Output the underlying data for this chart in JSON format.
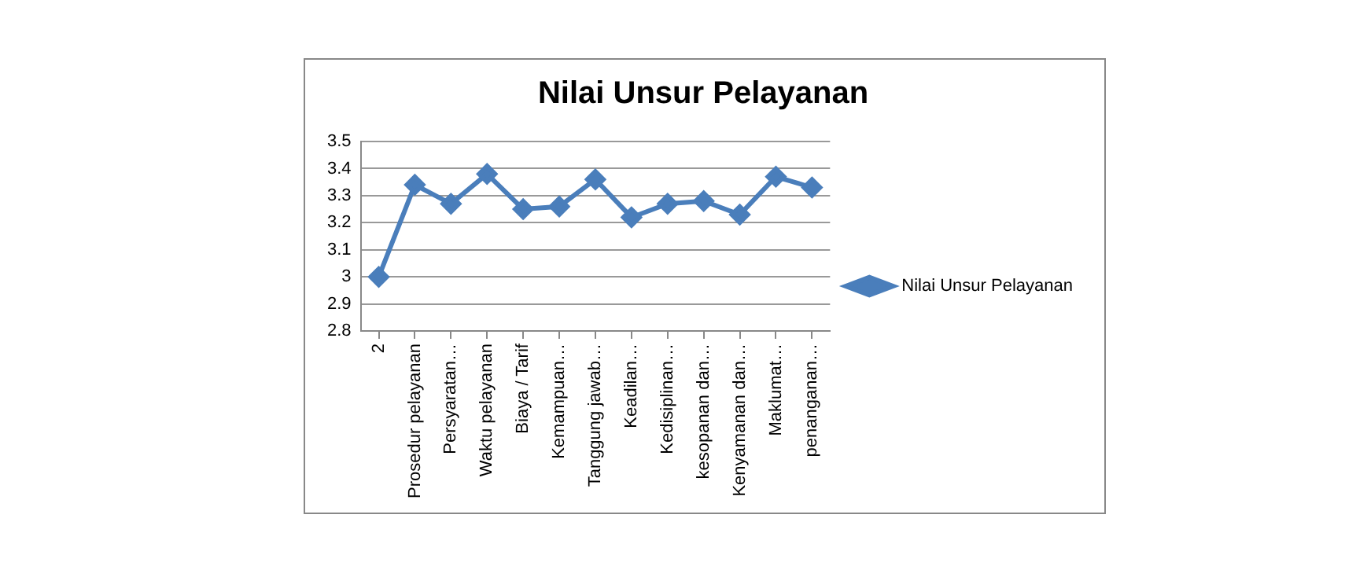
{
  "chart_data": {
    "type": "line",
    "title": "Nilai Unsur Pelayanan",
    "categories": [
      "2",
      "Prosedur pelayanan",
      "Persyaratan…",
      "Waktu pelayanan",
      "Biaya / Tarif",
      "Kemampuan…",
      "Tanggung jawab…",
      "Keadilan…",
      "Kedisiplinan…",
      "kesopanan dan…",
      "Kenyamanan dan…",
      "Maklumat…",
      "penanganan…"
    ],
    "series": [
      {
        "name": "Nilai Unsur Pelayanan",
        "color": "#4a7ebb",
        "values": [
          3.0,
          3.34,
          3.27,
          3.38,
          3.25,
          3.26,
          3.36,
          3.22,
          3.27,
          3.28,
          3.23,
          3.37,
          3.33
        ]
      }
    ],
    "ylim": [
      2.8,
      3.5
    ],
    "yticks": [
      2.8,
      2.9,
      3,
      3.1,
      3.2,
      3.3,
      3.4,
      3.5
    ],
    "grid": "y",
    "legend": "right",
    "marker": "diamond",
    "line_style": "solid"
  }
}
